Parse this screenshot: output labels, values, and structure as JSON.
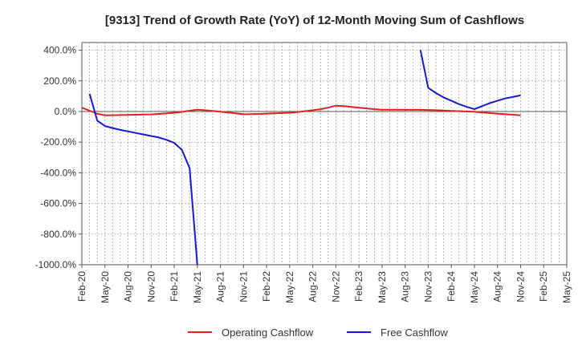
{
  "chart_data": {
    "type": "line",
    "title": "[9313]  Trend of Growth Rate (YoY) of 12-Month Moving Sum of Cashflows",
    "xlabel": "",
    "ylabel": "",
    "x_ticks": [
      "Feb-20",
      "May-20",
      "Aug-20",
      "Nov-20",
      "Feb-21",
      "May-21",
      "Aug-21",
      "Nov-21",
      "Feb-22",
      "May-22",
      "Aug-22",
      "Nov-22",
      "Feb-23",
      "May-23",
      "Aug-23",
      "Nov-23",
      "Feb-24",
      "May-24",
      "Aug-24",
      "Nov-24",
      "Feb-25",
      "May-25"
    ],
    "y_ticks": [
      "400.0%",
      "200.0%",
      "0.0%",
      "-200.0%",
      "-400.0%",
      "-600.0%",
      "-800.0%",
      "-1000.0%"
    ],
    "ylim": [
      -1000,
      450
    ],
    "grid": true,
    "legend_position": "bottom",
    "series": [
      {
        "name": "Operating Cashflow",
        "color": "#e0201b",
        "x": [
          "2020-02",
          "2020-03",
          "2020-04",
          "2020-05",
          "2020-06",
          "2020-07",
          "2020-08",
          "2020-09",
          "2020-10",
          "2020-11",
          "2020-12",
          "2021-01",
          "2021-02",
          "2021-03",
          "2021-04",
          "2021-05",
          "2021-06",
          "2021-07",
          "2021-08",
          "2021-09",
          "2021-10",
          "2021-11",
          "2021-12",
          "2022-01",
          "2022-02",
          "2022-03",
          "2022-04",
          "2022-05",
          "2022-06",
          "2022-07",
          "2022-08",
          "2022-09",
          "2022-10",
          "2022-11",
          "2022-12",
          "2023-01",
          "2023-02",
          "2023-03",
          "2023-04",
          "2023-05",
          "2023-06",
          "2023-07",
          "2023-08",
          "2023-09",
          "2023-10",
          "2023-11",
          "2023-12",
          "2024-01",
          "2024-02",
          "2024-03",
          "2024-04",
          "2024-05",
          "2024-06",
          "2024-07",
          "2024-08",
          "2024-09",
          "2024-10",
          "2024-11"
        ],
        "y": [
          25,
          5,
          -15,
          -25,
          -24,
          -23,
          -22,
          -21,
          -20,
          -19,
          -16,
          -12,
          -8,
          -3,
          5,
          12,
          8,
          3,
          -2,
          -7,
          -12,
          -18,
          -17,
          -16,
          -14,
          -12,
          -10,
          -8,
          -4,
          2,
          8,
          15,
          25,
          38,
          35,
          30,
          25,
          20,
          15,
          12,
          12,
          12,
          11,
          11,
          11,
          10,
          8,
          6,
          4,
          2,
          0,
          -2,
          -6,
          -10,
          -14,
          -18,
          -21,
          -25
        ]
      },
      {
        "name": "Free Cashflow",
        "color": "#1818d0",
        "x": [
          "2020-03",
          "2020-04",
          "2020-05",
          "2020-06",
          "2020-07",
          "2020-08",
          "2020-09",
          "2020-10",
          "2020-11",
          "2020-12",
          "2021-01",
          "2021-02",
          "2021-03",
          "2021-04",
          "2021-05",
          null,
          "2023-10",
          "2023-11",
          "2023-12",
          "2024-01",
          "2024-02",
          "2024-03",
          "2024-04",
          "2024-05",
          "2024-06",
          "2024-07",
          "2024-08",
          "2024-09",
          "2024-10",
          "2024-11"
        ],
        "y": [
          115,
          -60,
          -95,
          -108,
          -120,
          -130,
          -140,
          -150,
          -160,
          -170,
          -185,
          -205,
          -250,
          -370,
          -1000,
          null,
          400,
          155,
          120,
          92,
          70,
          48,
          30,
          15,
          35,
          55,
          70,
          85,
          95,
          105
        ]
      }
    ]
  }
}
